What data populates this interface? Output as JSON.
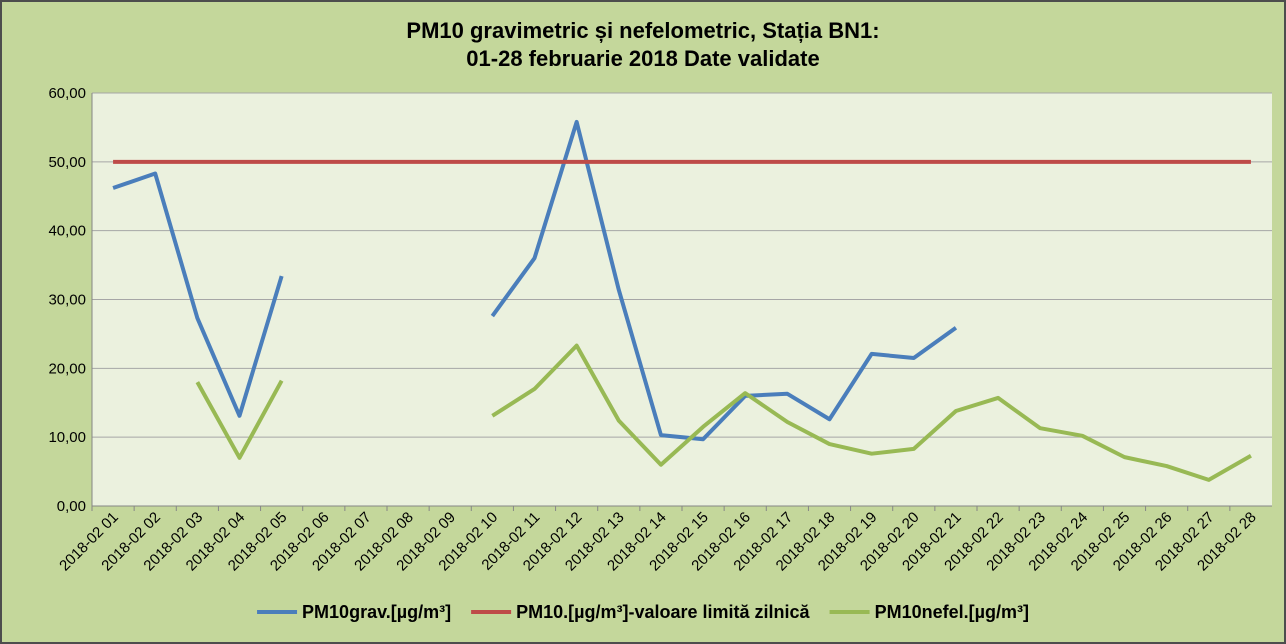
{
  "chart_data": {
    "type": "line",
    "title": [
      "PM10 gravimetric și nefelometric, Stația BN1:",
      "01-28 februarie 2018 Date validate"
    ],
    "categories": [
      "2018-02 01",
      "2018-02 02",
      "2018-02 03",
      "2018-02 04",
      "2018-02 05",
      "2018-02 06",
      "2018-02 07",
      "2018-02 08",
      "2018-02 09",
      "2018-02 10",
      "2018-02 11",
      "2018-02 12",
      "2018-02 13",
      "2018-02 14",
      "2018-02 15",
      "2018-02 16",
      "2018-02 17",
      "2018-02 18",
      "2018-02 19",
      "2018-02 20",
      "2018-02 21",
      "2018-02 22",
      "2018-02 23",
      "2018-02 24",
      "2018-02 25",
      "2018-02 26",
      "2018-02 27",
      "2018-02 28"
    ],
    "series": [
      {
        "name": "PM10grav.[µg/m³]",
        "color": "#4a7ebb",
        "values": [
          46.2,
          48.3,
          27.3,
          13.1,
          33.4,
          null,
          null,
          null,
          null,
          27.6,
          36.0,
          55.8,
          31.4,
          10.3,
          9.7,
          16.0,
          16.3,
          12.6,
          22.1,
          21.5,
          25.9,
          null,
          null,
          null,
          null,
          null,
          null,
          null
        ]
      },
      {
        "name": "PM10.[µg/m³]-valoare limită zilnică",
        "color": "#be4b48",
        "values": [
          50,
          50,
          50,
          50,
          50,
          50,
          50,
          50,
          50,
          50,
          50,
          50,
          50,
          50,
          50,
          50,
          50,
          50,
          50,
          50,
          50,
          50,
          50,
          50,
          50,
          50,
          50,
          50
        ]
      },
      {
        "name": "PM10nefel.[µg/m³]",
        "color": "#98b954",
        "values": [
          null,
          null,
          18.0,
          7.0,
          18.2,
          null,
          null,
          null,
          null,
          13.1,
          17.0,
          23.3,
          12.4,
          6.0,
          11.5,
          16.4,
          12.2,
          9.0,
          7.6,
          8.3,
          13.8,
          15.7,
          11.3,
          10.2,
          7.1,
          5.8,
          3.8,
          7.3
        ]
      }
    ],
    "ylim": [
      0,
      60
    ],
    "yticks": [
      {
        "value": 0,
        "label": "0,00"
      },
      {
        "value": 10,
        "label": "10,00"
      },
      {
        "value": 20,
        "label": "20,00"
      },
      {
        "value": 30,
        "label": "30,00"
      },
      {
        "value": 40,
        "label": "40,00"
      },
      {
        "value": 50,
        "label": "50,00"
      },
      {
        "value": 60,
        "label": "60,00"
      }
    ],
    "grid": true,
    "legend": "bottom"
  }
}
